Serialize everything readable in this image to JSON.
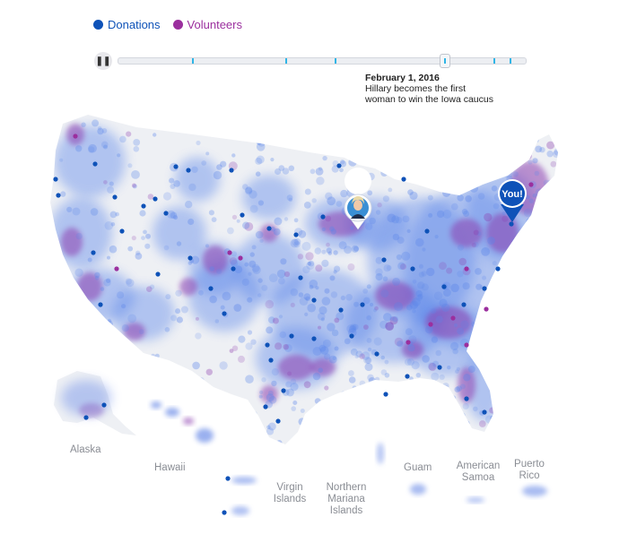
{
  "legend": {
    "donations_label": "Donations",
    "volunteers_label": "Volunteers"
  },
  "colors": {
    "donations": "#0e52b8",
    "volunteers": "#9b2f9e",
    "density_blue": "#5b86ea",
    "density_purple": "#8d3fb0",
    "land": "#eef0f4",
    "timeline_tick": "#2fb5e6"
  },
  "timeline": {
    "play_state": "paused",
    "play_icon": "pause-icon",
    "progress": 0.8,
    "event_markers": [
      0.18,
      0.41,
      0.53,
      0.8,
      0.92,
      0.96
    ]
  },
  "event": {
    "date": "February 1, 2016",
    "line1": "Hillary becomes the first",
    "line2": "woman to win the Iowa caucus"
  },
  "markers": {
    "candidate_icon": "candidate-avatar-icon",
    "you_label": "You!"
  },
  "territories": {
    "alaska": "Alaska",
    "hawaii": "Hawaii",
    "virgin_islands_line1": "Virgin",
    "virgin_islands_line2": "Islands",
    "northern_mariana_line1": "Northern",
    "northern_mariana_line2": "Mariana",
    "northern_mariana_line3": "Islands",
    "guam": "Guam",
    "american_samoa_line1": "American",
    "american_samoa_line2": "Samoa",
    "puerto_rico_line1": "Puerto",
    "puerto_rico_line2": "Rico"
  }
}
